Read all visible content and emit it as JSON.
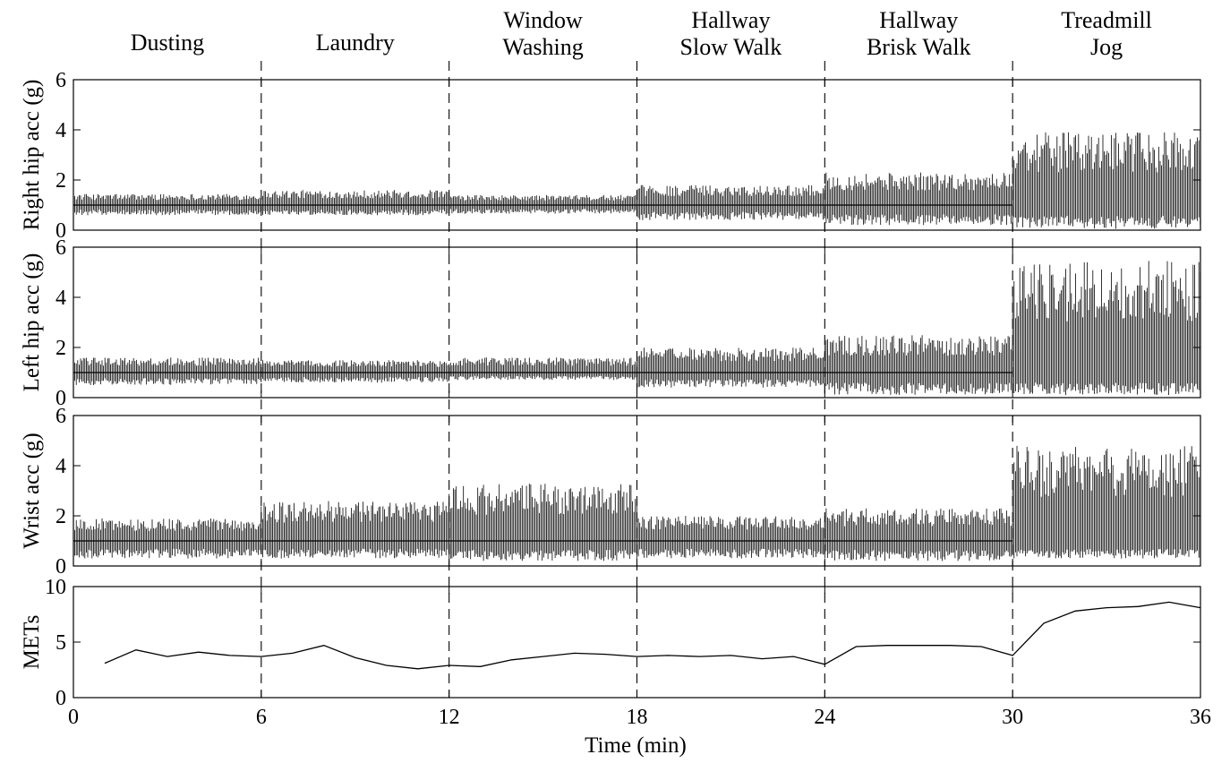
{
  "chart_data": {
    "type": "line",
    "xlabel": "Time (min)",
    "x_ticks": [
      "0",
      "6",
      "12",
      "18",
      "24",
      "30",
      "36"
    ],
    "xlim": [
      0,
      36
    ],
    "activities": [
      {
        "lines": [
          "Dusting"
        ],
        "start": 0,
        "end": 6
      },
      {
        "lines": [
          "Laundry"
        ],
        "start": 6,
        "end": 12
      },
      {
        "lines": [
          "Window",
          "Washing"
        ],
        "start": 12,
        "end": 18
      },
      {
        "lines": [
          "Hallway",
          "Slow Walk"
        ],
        "start": 18,
        "end": 24
      },
      {
        "lines": [
          "Hallway",
          "Brisk Walk"
        ],
        "start": 24,
        "end": 30
      },
      {
        "lines": [
          "Treadmill",
          "Jog"
        ],
        "start": 30,
        "end": 36
      }
    ],
    "boundaries": [
      6,
      12,
      18,
      24,
      30
    ],
    "panels": [
      {
        "ylabel": "Right hip acc (g)",
        "ylim": [
          0,
          6
        ],
        "y_ticks": [
          "0",
          "2",
          "4",
          "6"
        ],
        "segment_ranges": [
          {
            "x": [
              0,
              6
            ],
            "low": 0.6,
            "high": 1.45
          },
          {
            "x": [
              6,
              12
            ],
            "low": 0.6,
            "high": 1.6
          },
          {
            "x": [
              12,
              18
            ],
            "low": 0.65,
            "high": 1.4
          },
          {
            "x": [
              18,
              24
            ],
            "low": 0.4,
            "high": 1.8
          },
          {
            "x": [
              24,
              30
            ],
            "low": 0.2,
            "high": 2.3
          },
          {
            "x": [
              30,
              36
            ],
            "low": 0.05,
            "high": 3.9
          }
        ]
      },
      {
        "ylabel": "Left hip acc (g)",
        "ylim": [
          0,
          6
        ],
        "y_ticks": [
          "0",
          "2",
          "4",
          "6"
        ],
        "segment_ranges": [
          {
            "x": [
              0,
              6
            ],
            "low": 0.5,
            "high": 1.6
          },
          {
            "x": [
              6,
              12
            ],
            "low": 0.6,
            "high": 1.5
          },
          {
            "x": [
              12,
              18
            ],
            "low": 0.7,
            "high": 1.6
          },
          {
            "x": [
              18,
              24
            ],
            "low": 0.4,
            "high": 2.0
          },
          {
            "x": [
              24,
              30
            ],
            "low": 0.1,
            "high": 2.5
          },
          {
            "x": [
              30,
              36
            ],
            "low": 0.1,
            "high": 5.5
          }
        ]
      },
      {
        "ylabel": "Wrist acc (g)",
        "ylim": [
          0,
          6
        ],
        "y_ticks": [
          "0",
          "2",
          "4",
          "6"
        ],
        "segment_ranges": [
          {
            "x": [
              0,
              6
            ],
            "low": 0.3,
            "high": 1.9
          },
          {
            "x": [
              6,
              12
            ],
            "low": 0.3,
            "high": 2.6
          },
          {
            "x": [
              12,
              18
            ],
            "low": 0.2,
            "high": 3.3
          },
          {
            "x": [
              18,
              24
            ],
            "low": 0.3,
            "high": 2.0
          },
          {
            "x": [
              24,
              30
            ],
            "low": 0.2,
            "high": 2.3
          },
          {
            "x": [
              30,
              36
            ],
            "low": 0.3,
            "high": 4.8
          }
        ]
      },
      {
        "ylabel": "METs",
        "ylim": [
          0,
          10
        ],
        "y_ticks": [
          "0",
          "5",
          "10"
        ],
        "series": [
          {
            "x": [
              1,
              2,
              3,
              4,
              5,
              6,
              7,
              8,
              9,
              10,
              11,
              12,
              13,
              14,
              15,
              16,
              17,
              18,
              19,
              20,
              21,
              22,
              23,
              24,
              25,
              26,
              27,
              28,
              29,
              30,
              31,
              32,
              33,
              34,
              35,
              36
            ],
            "values": [
              3.1,
              4.3,
              3.7,
              4.1,
              3.8,
              3.7,
              4.0,
              4.7,
              3.6,
              2.9,
              2.6,
              2.9,
              2.8,
              3.4,
              3.7,
              4.0,
              3.9,
              3.7,
              3.8,
              3.7,
              3.8,
              3.5,
              3.7,
              3.0,
              4.6,
              4.7,
              4.7,
              4.7,
              4.6,
              3.8,
              6.7,
              7.8,
              8.1,
              8.2,
              8.6,
              8.1
            ]
          }
        ]
      }
    ]
  }
}
